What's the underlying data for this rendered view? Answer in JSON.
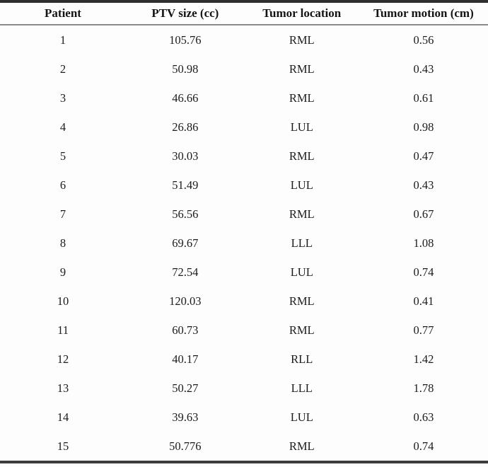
{
  "table": {
    "columns": [
      {
        "key": "patient",
        "label": "Patient"
      },
      {
        "key": "ptv-size",
        "label": "PTV size (cc)"
      },
      {
        "key": "tumor-location",
        "label": "Tumor location"
      },
      {
        "key": "tumor-motion",
        "label": "Tumor motion (cm)"
      }
    ],
    "rows": [
      [
        "1",
        "105.76",
        "RML",
        "0.56"
      ],
      [
        "2",
        "50.98",
        "RML",
        "0.43"
      ],
      [
        "3",
        "46.66",
        "RML",
        "0.61"
      ],
      [
        "4",
        "26.86",
        "LUL",
        "0.98"
      ],
      [
        "5",
        "30.03",
        "RML",
        "0.47"
      ],
      [
        "6",
        "51.49",
        "LUL",
        "0.43"
      ],
      [
        "7",
        "56.56",
        "RML",
        "0.67"
      ],
      [
        "8",
        "69.67",
        "LLL",
        "1.08"
      ],
      [
        "9",
        "72.54",
        "LUL",
        "0.74"
      ],
      [
        "10",
        "120.03",
        "RML",
        "0.41"
      ],
      [
        "11",
        "60.73",
        "RML",
        "0.77"
      ],
      [
        "12",
        "40.17",
        "RLL",
        "1.42"
      ],
      [
        "13",
        "50.27",
        "LLL",
        "1.78"
      ],
      [
        "14",
        "39.63",
        "LUL",
        "0.63"
      ],
      [
        "15",
        "50.776",
        "RML",
        "0.74"
      ]
    ]
  },
  "colors": {
    "top_rule": "#2e2e2e",
    "header_rule": "#8a8a8a",
    "bottom_rule": "#3c3c3c",
    "text": "#1c1c1c",
    "background": "#fdfdfd"
  }
}
